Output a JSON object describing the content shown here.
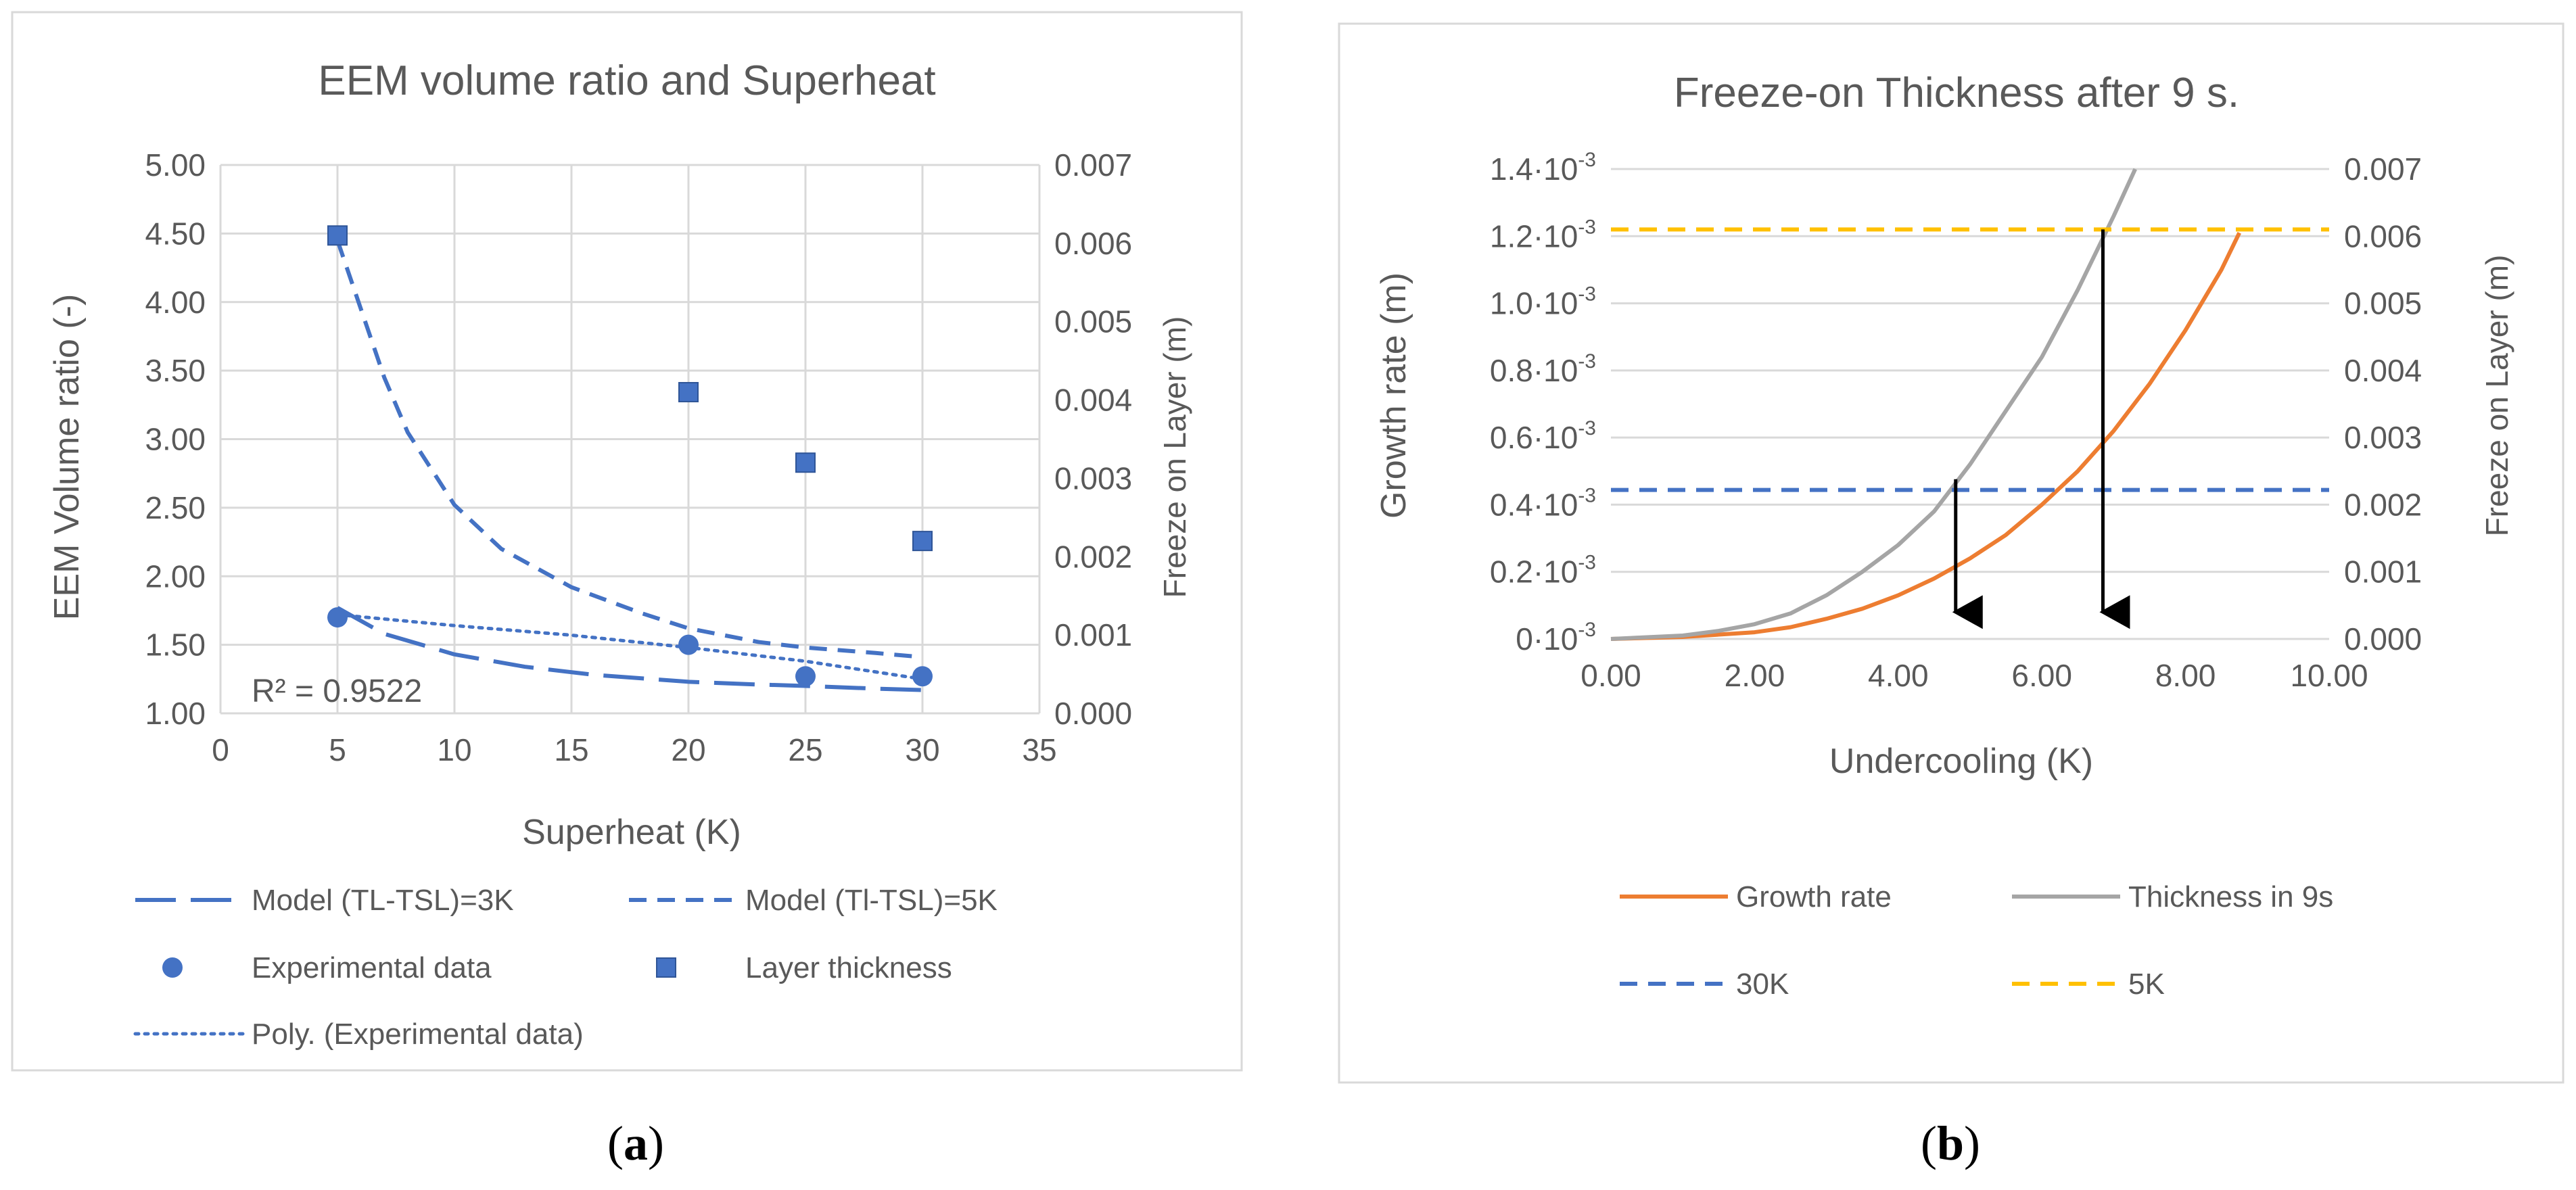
{
  "panels": [
    {
      "id": "a",
      "open": "(",
      "letter": "a",
      "close": ")"
    },
    {
      "id": "b",
      "open": "(",
      "letter": "b",
      "close": ")"
    }
  ],
  "chart_data": [
    {
      "type": "scatter",
      "title": "EEM volume ratio and Superheat",
      "xlabel": "Superheat (K)",
      "ylabel": "EEM Volume ratio (-)",
      "y2label": "Freeze on Layer (m)",
      "xlim": [
        0,
        35
      ],
      "ylim": [
        1.0,
        5.0
      ],
      "y2lim": [
        0.0,
        0.007
      ],
      "x_ticks": [
        "0",
        "5",
        "10",
        "15",
        "20",
        "25",
        "30",
        "35"
      ],
      "y_ticks": [
        "1.00",
        "1.50",
        "2.00",
        "2.50",
        "3.00",
        "3.50",
        "4.00",
        "4.50",
        "5.00"
      ],
      "y2_ticks": [
        "0.000",
        "0.001",
        "0.002",
        "0.003",
        "0.004",
        "0.005",
        "0.006",
        "0.007"
      ],
      "grid": true,
      "legend_position": "bottom",
      "annotation": "R² = 0.9522",
      "series": [
        {
          "name": "Model (TL-TSL)=3K",
          "style": "long-dash",
          "color": "#4472c4",
          "axis": "left",
          "x": [
            5,
            7,
            10,
            13,
            16,
            20,
            23,
            25,
            28,
            30
          ],
          "y": [
            1.77,
            1.58,
            1.43,
            1.34,
            1.28,
            1.23,
            1.21,
            1.2,
            1.18,
            1.17
          ]
        },
        {
          "name": "Model (Tl-TSL)=5K",
          "style": "dash",
          "color": "#4472c4",
          "axis": "left",
          "x": [
            5,
            6,
            7,
            8,
            10,
            12,
            15,
            18,
            20,
            23,
            25,
            28,
            30
          ],
          "y": [
            4.45,
            3.95,
            3.45,
            3.05,
            2.52,
            2.2,
            1.92,
            1.73,
            1.62,
            1.52,
            1.48,
            1.44,
            1.41
          ]
        },
        {
          "name": "Experimental data",
          "style": "marker-circle",
          "color": "#4472c4",
          "axis": "left",
          "x": [
            5,
            20,
            25,
            30
          ],
          "y": [
            1.7,
            1.5,
            1.27,
            1.27
          ]
        },
        {
          "name": "Layer thickness",
          "style": "marker-square",
          "color": "#4472c4",
          "axis": "right",
          "x": [
            5,
            20,
            25,
            30
          ],
          "y": [
            0.0061,
            0.0041,
            0.0032,
            0.0022
          ]
        },
        {
          "name": "Poly. (Experimental data)",
          "style": "dot",
          "color": "#4472c4",
          "axis": "left",
          "x": [
            5,
            10,
            15,
            20,
            25,
            30
          ],
          "y": [
            1.72,
            1.64,
            1.57,
            1.48,
            1.38,
            1.25
          ]
        }
      ]
    },
    {
      "type": "line",
      "title": "Freeze-on Thickness after 9 s.",
      "xlabel": "Undercooling (K)",
      "ylabel": "Growth rate (m)",
      "y2label": "Freeze on Layer (m)",
      "xlim": [
        0,
        10
      ],
      "ylim": [
        0,
        0.0014
      ],
      "y2lim": [
        0,
        0.007
      ],
      "x_ticks": [
        "0.00",
        "2.00",
        "4.00",
        "6.00",
        "8.00",
        "10.00"
      ],
      "y_ticks": [
        {
          "base": "0·10",
          "exp": "-3"
        },
        {
          "base": "0.2·10",
          "exp": "-3"
        },
        {
          "base": "0.4·10",
          "exp": "-3"
        },
        {
          "base": "0.6·10",
          "exp": "-3"
        },
        {
          "base": "0.8·10",
          "exp": "-3"
        },
        {
          "base": "1.0·10",
          "exp": "-3"
        },
        {
          "base": "1.2·10",
          "exp": "-3"
        },
        {
          "base": "1.4·10",
          "exp": "-3"
        }
      ],
      "y2_ticks": [
        "0.000",
        "0.001",
        "0.002",
        "0.003",
        "0.004",
        "0.005",
        "0.006",
        "0.007"
      ],
      "grid": true,
      "legend_position": "bottom",
      "series": [
        {
          "name": "Growth rate",
          "style": "solid",
          "color": "#ed7d31",
          "axis": "left",
          "x": [
            0,
            1,
            2,
            2.5,
            3,
            3.5,
            4,
            4.5,
            5,
            5.5,
            6,
            6.5,
            7,
            7.5,
            8,
            8.5,
            8.75
          ],
          "y": [
            0,
            6e-06,
            2e-05,
            3.5e-05,
            6e-05,
            9e-05,
            0.00013,
            0.00018,
            0.00024,
            0.00031,
            0.0004,
            0.0005,
            0.00062,
            0.00076,
            0.00092,
            0.0011,
            0.00121
          ]
        },
        {
          "name": "Thickness in 9s",
          "style": "solid",
          "color": "#a5a5a5",
          "axis": "right",
          "x": [
            0,
            1,
            1.5,
            2,
            2.5,
            3,
            3.5,
            4,
            4.5,
            5,
            5.5,
            6,
            6.5,
            7,
            7.3
          ],
          "y": [
            0,
            5e-05,
            0.00012,
            0.00022,
            0.00038,
            0.00065,
            0.001,
            0.0014,
            0.0019,
            0.0026,
            0.0034,
            0.0042,
            0.0052,
            0.0063,
            0.007
          ]
        },
        {
          "name": "30K",
          "style": "dash",
          "color": "#4472c4",
          "axis": "right",
          "x": [
            0,
            10
          ],
          "y": [
            0.00222,
            0.00222
          ]
        },
        {
          "name": "5K",
          "style": "dash",
          "color": "#ffc000",
          "axis": "right",
          "x": [
            0,
            10
          ],
          "y": [
            0.0061,
            0.0061
          ]
        }
      ],
      "arrows": [
        {
          "x": 4.8,
          "y_from": 0.00238,
          "y_to": 0.0004,
          "axis": "right"
        },
        {
          "x": 6.85,
          "y_from": 0.0061,
          "y_to": 0.0004,
          "axis": "right"
        }
      ]
    }
  ]
}
